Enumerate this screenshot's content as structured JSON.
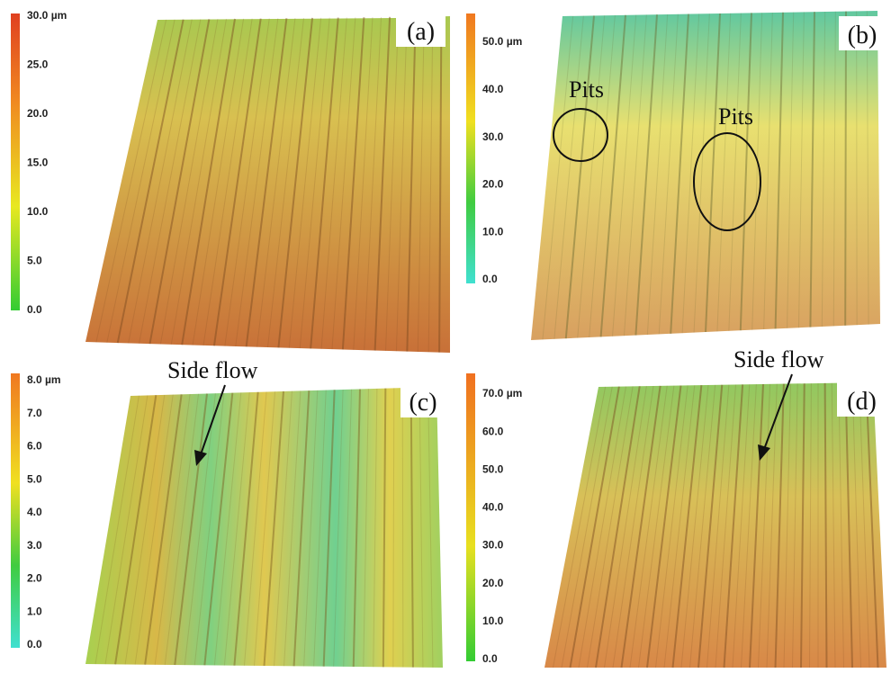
{
  "panels": [
    {
      "label": "(a)",
      "colorbar": {
        "ticks": [
          "30.0 µm",
          "25.0",
          "20.0",
          "15.0",
          "10.0",
          "5.0",
          "0.0"
        ]
      }
    },
    {
      "label": "(b)",
      "colorbar": {
        "ticks": [
          "50.0 µm",
          "40.0",
          "30.0",
          "20.0",
          "10.0",
          "0.0"
        ]
      },
      "annotations": [
        "Pits",
        "Pits"
      ]
    },
    {
      "label": "(c)",
      "colorbar": {
        "ticks": [
          "8.0 µm",
          "7.0",
          "6.0",
          "5.0",
          "4.0",
          "3.0",
          "2.0",
          "1.0",
          "0.0"
        ]
      },
      "annotations": [
        "Side flow"
      ]
    },
    {
      "label": "(d)",
      "colorbar": {
        "ticks": [
          "70.0 µm",
          "60.0",
          "50.0",
          "40.0",
          "30.0",
          "20.0",
          "10.0",
          "0.0"
        ]
      },
      "annotations": [
        "Side flow"
      ]
    }
  ]
}
